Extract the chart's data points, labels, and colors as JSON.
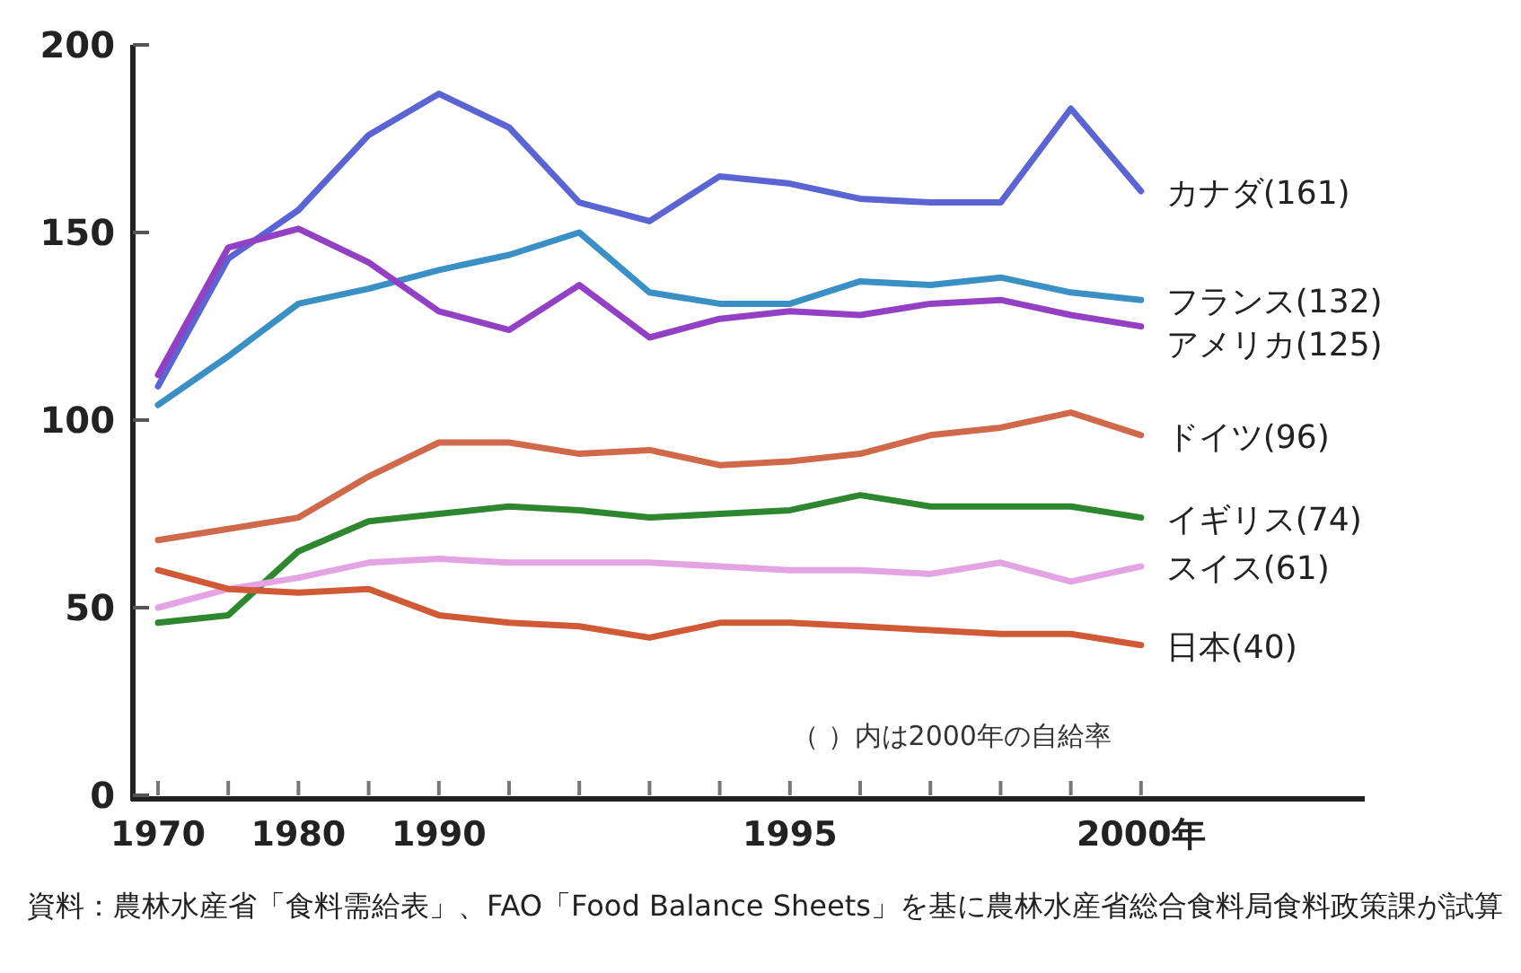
{
  "chart_data": {
    "type": "line",
    "categories": [
      "1970",
      null,
      "1980",
      null,
      "1990",
      null,
      null,
      null,
      null,
      "1995",
      null,
      null,
      null,
      null,
      "2000年"
    ],
    "ylim": [
      0,
      200
    ],
    "yticks": [
      0,
      50,
      100,
      150,
      200
    ],
    "grid": false,
    "legend": false,
    "marker": "none",
    "line_style": "solid",
    "series": [
      {
        "name": "カナダ(161)",
        "color": "#5a64d2",
        "values": [
          109,
          143,
          156,
          176,
          187,
          178,
          158,
          153,
          165,
          163,
          159,
          158,
          158,
          183,
          161
        ]
      },
      {
        "name": "フランス(132)",
        "color": "#3a90c4",
        "values": [
          104,
          117,
          131,
          135,
          140,
          144,
          150,
          134,
          131,
          131,
          137,
          136,
          138,
          134,
          132
        ]
      },
      {
        "name": "アメリカ(125)",
        "color": "#9440c4",
        "values": [
          112,
          146,
          151,
          142,
          129,
          124,
          136,
          122,
          127,
          129,
          128,
          131,
          132,
          128,
          125
        ]
      },
      {
        "name": "ドイツ(96)",
        "color": "#d0684a",
        "values": [
          68,
          71,
          74,
          85,
          94,
          94,
          91,
          92,
          88,
          89,
          91,
          96,
          98,
          102,
          96
        ]
      },
      {
        "name": "イギリス(74)",
        "color": "#2e862e",
        "values": [
          46,
          48,
          65,
          73,
          75,
          77,
          76,
          74,
          75,
          76,
          80,
          77,
          77,
          77,
          74
        ]
      },
      {
        "name": "スイス(61)",
        "color": "#e4a4e4",
        "values": [
          50,
          55,
          58,
          62,
          63,
          62,
          62,
          62,
          61,
          60,
          60,
          59,
          62,
          57,
          61
        ]
      },
      {
        "name": "日本(40)",
        "color": "#d05a36",
        "values": [
          60,
          55,
          54,
          55,
          48,
          46,
          45,
          42,
          46,
          46,
          45,
          44,
          43,
          43,
          40
        ]
      }
    ],
    "annotations": [
      "（ ）内は2000年の自給率",
      "資料：農林水産省「食料需給表」、FAO「Food Balance Sheets」を基に農林水産省総合食料局食料政策課が試算"
    ]
  }
}
